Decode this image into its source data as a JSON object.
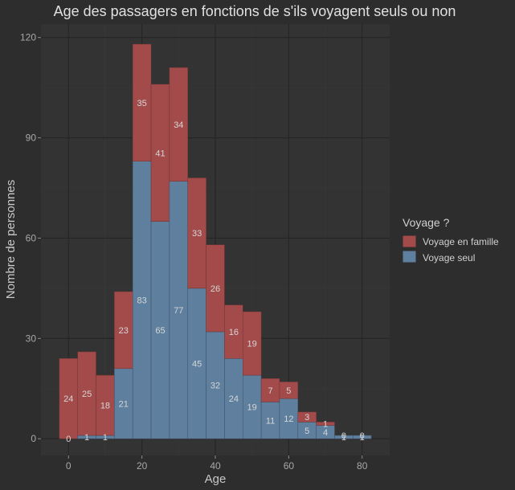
{
  "chart_data": {
    "type": "bar",
    "stacked": true,
    "title": "Age des passagers en fonctions de s'ils voyagent seuls ou non",
    "xlabel": "Age",
    "ylabel": "Nombre de personnes",
    "bin_width": 5,
    "bin_centers": [
      0,
      5,
      10,
      15,
      20,
      25,
      30,
      35,
      40,
      45,
      50,
      55,
      60,
      65,
      70,
      75,
      80
    ],
    "xlim": [
      -7.5,
      87.5
    ],
    "ylim": [
      -5,
      124
    ],
    "xticks": [
      0,
      20,
      40,
      60,
      80
    ],
    "yticks": [
      0,
      30,
      60,
      90,
      120
    ],
    "grid": true,
    "legend": {
      "title": "Voyage ?",
      "position": "right"
    },
    "series": [
      {
        "name": "Voyage seul",
        "color": "#5e7f9d",
        "values": [
          0,
          1,
          1,
          21,
          83,
          65,
          77,
          45,
          32,
          24,
          19,
          11,
          12,
          5,
          4,
          1,
          1
        ]
      },
      {
        "name": "Voyage en famille",
        "color": "#a34b4b",
        "values": [
          24,
          25,
          18,
          23,
          35,
          41,
          34,
          33,
          26,
          16,
          19,
          7,
          5,
          3,
          1,
          0,
          0
        ]
      }
    ]
  }
}
